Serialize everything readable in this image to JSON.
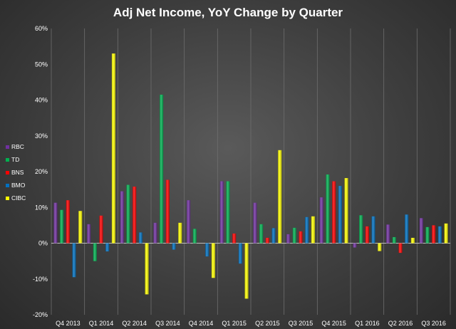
{
  "chart_data": {
    "type": "bar",
    "title": "Adj Net Income, YoY Change by Quarter",
    "xlabel": "",
    "ylabel": "",
    "ylim": [
      -20,
      60
    ],
    "yticks": [
      -20,
      -10,
      0,
      10,
      20,
      30,
      40,
      50,
      60
    ],
    "ytick_labels": [
      "-20%",
      "-10%",
      "0%",
      "10%",
      "20%",
      "30%",
      "40%",
      "50%",
      "60%"
    ],
    "grid": true,
    "legend_position": "left",
    "categories": [
      "Q4 2013",
      "Q1 2014",
      "Q2 2014",
      "Q3 2014",
      "Q4 2014",
      "Q1 2015",
      "Q2 2015",
      "Q3 2015",
      "Q4 2015",
      "Q1 2016",
      "Q2 2016",
      "Q3 2016"
    ],
    "series": [
      {
        "name": "RBC",
        "color": "#7030a0",
        "values": [
          11.3,
          5.3,
          14.5,
          5.7,
          12.0,
          17.3,
          11.3,
          2.5,
          12.8,
          -1.2,
          5.2,
          7.0
        ]
      },
      {
        "name": "TD",
        "color": "#00b050",
        "values": [
          9.3,
          -5.0,
          16.3,
          41.5,
          4.0,
          17.3,
          5.3,
          4.3,
          19.2,
          7.8,
          1.7,
          4.5
        ]
      },
      {
        "name": "BNS",
        "color": "#ff0000",
        "values": [
          12.0,
          7.7,
          15.8,
          17.7,
          0.0,
          2.7,
          1.5,
          3.3,
          17.3,
          4.7,
          -2.7,
          5.0
        ]
      },
      {
        "name": "BMO",
        "color": "#0070c0",
        "values": [
          -9.5,
          -2.3,
          3.0,
          -1.8,
          -3.7,
          -5.7,
          4.2,
          7.3,
          16.0,
          7.5,
          8.0,
          4.7
        ]
      },
      {
        "name": "CIBC",
        "color": "#ffff00",
        "values": [
          9.0,
          53.0,
          -14.3,
          5.7,
          -9.7,
          -15.5,
          26.0,
          7.5,
          18.2,
          -2.2,
          1.5,
          5.5
        ]
      }
    ]
  }
}
